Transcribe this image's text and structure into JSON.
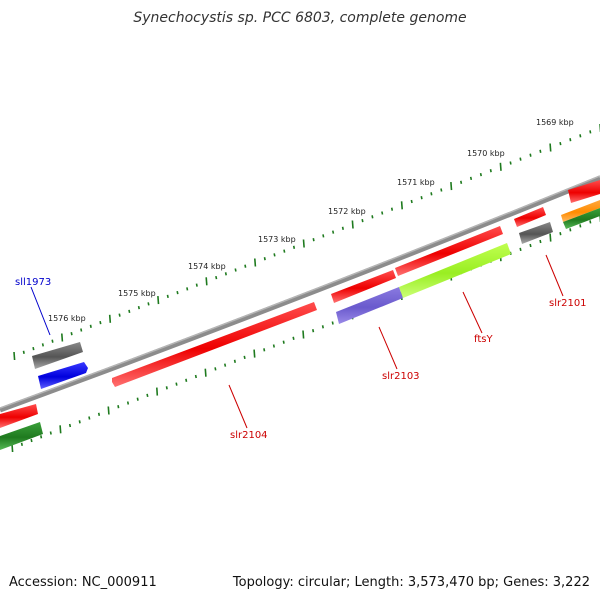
{
  "title": "Synechocystis sp. PCC 6803, complete genome",
  "accession": "Accession: NC_000911",
  "summary": "Topology: circular; Length: 3,573,470 bp; Genes: 3,222",
  "ruler_labels": [
    "1569 kbp",
    "1570 kbp",
    "1571 kbp",
    "1572 kbp",
    "1573 kbp",
    "1574 kbp",
    "1575 kbp",
    "1576 kbp"
  ],
  "gene_labels": [
    {
      "name": "sll1973",
      "color": "#0000cc"
    },
    {
      "name": "slr2104",
      "color": "#cc0000"
    },
    {
      "name": "slr2103",
      "color": "#cc0000"
    },
    {
      "name": "ftsY",
      "color": "#cc0000"
    },
    {
      "name": "slr2101",
      "color": "#cc0000"
    }
  ],
  "colors": {
    "backbone": "#8c8c8c",
    "tick": "#1e7a1e",
    "cds": "#ff0000",
    "gray_feature": "#666666",
    "blue_feature": "#0000ee",
    "purple_feature": "#6a5acd",
    "lime_feature": "#99ee22",
    "green_feature": "#228b22",
    "orange_feature": "#ff8c00"
  }
}
